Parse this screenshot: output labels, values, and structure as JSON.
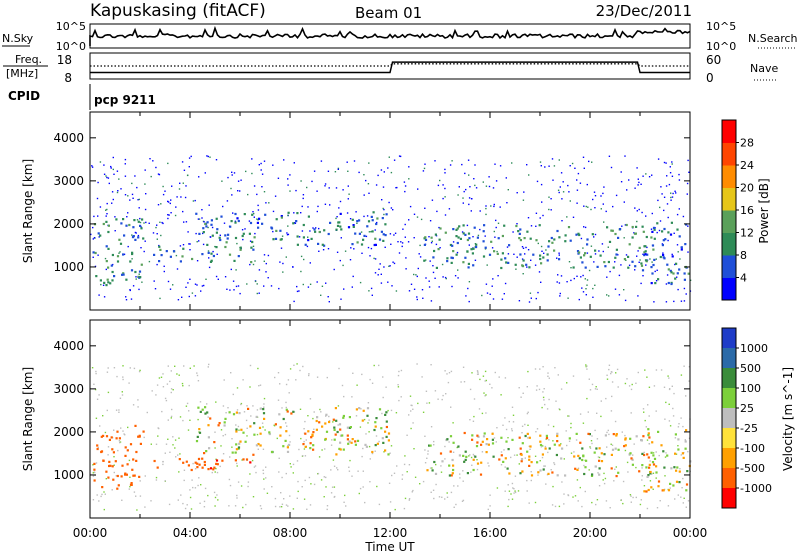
{
  "header": {
    "station": "Kapuskasing (fitACF)",
    "beam": "Beam 01",
    "date": "23/Dec/2011"
  },
  "top_panels": {
    "nsky_label": "N.Sky",
    "nsearch_label": "N.Search",
    "freq_label_line1": "Freq.",
    "freq_label_line2": "[MHz]",
    "nave_label": "Nave",
    "cpid_label": "CPID",
    "cpid_value": "pcp 9211",
    "noise_ticks_left": [
      "10^5",
      "10^0"
    ],
    "noise_ticks_right": [
      "10^5",
      "10^0"
    ],
    "freq_ticks": [
      "18",
      "8"
    ],
    "nave_ticks": [
      "60",
      "0"
    ],
    "freq_series_mhz": [
      {
        "t": 0,
        "v": 10.5
      },
      {
        "t": 12,
        "v": 10.5
      },
      {
        "t": 12.1,
        "v": 14.5
      },
      {
        "t": 21.9,
        "v": 14.5
      },
      {
        "t": 22,
        "v": 10.5
      },
      {
        "t": 24,
        "v": 10.5
      }
    ],
    "nave_series": [
      {
        "t": 0,
        "v": 30
      },
      {
        "t": 12,
        "v": 30
      },
      {
        "t": 12.1,
        "v": 35
      },
      {
        "t": 21.9,
        "v": 35
      },
      {
        "t": 22,
        "v": 30
      },
      {
        "t": 24,
        "v": 30
      }
    ]
  },
  "chart_data": [
    {
      "type": "heatmap",
      "parameter": "Power",
      "ylabel": "Slant Range [km]",
      "xlabel": "Time UT",
      "colorbar_label": "Power [dB]",
      "colorbar_ticks": [
        "4",
        "8",
        "12",
        "16",
        "20",
        "24",
        "28"
      ],
      "colorbar_colors": [
        "#0000ff",
        "#1f4fd8",
        "#2e8b57",
        "#5aa05a",
        "#e6c619",
        "#ff8c00",
        "#ff4500",
        "#ff0000"
      ],
      "ylim": [
        0,
        4600
      ],
      "yticks": [
        "1000",
        "2000",
        "3000",
        "4000"
      ],
      "xlim_hours": [
        0,
        24
      ],
      "xticks": [
        "00:00",
        "04:00",
        "08:00",
        "12:00",
        "16:00",
        "20:00",
        "00:00"
      ],
      "scatter_regions": [
        {
          "t0": 0.0,
          "t1": 2.1,
          "r0": 600,
          "r1": 2200,
          "value": 10
        },
        {
          "t0": 2.5,
          "t1": 6.5,
          "r0": 1100,
          "r1": 1500,
          "value": 9
        },
        {
          "t0": 4.2,
          "t1": 12.0,
          "r0": 1500,
          "r1": 2300,
          "value": 8
        },
        {
          "t0": 13.3,
          "t1": 22.5,
          "r0": 1000,
          "r1": 2000,
          "value": 10
        },
        {
          "t0": 22.0,
          "t1": 24.0,
          "r0": 600,
          "r1": 2100,
          "value": 8
        }
      ]
    },
    {
      "type": "heatmap",
      "parameter": "Velocity",
      "ylabel": "Slant Range [km]",
      "xlabel": "Time UT",
      "colorbar_label": "Velocity [m s^-1]",
      "colorbar_ticks": [
        "1000",
        "500",
        "100",
        "25",
        "-25",
        "-100",
        "-500",
        "-1000"
      ],
      "colorbar_colors": [
        "#1e3cc8",
        "#2b6aa8",
        "#3a8c3a",
        "#7ccf3a",
        "#bebebe",
        "#ffe23a",
        "#ffa000",
        "#ff6000",
        "#ff0000"
      ],
      "ylim": [
        0,
        4600
      ],
      "yticks": [
        "1000",
        "2000",
        "3000",
        "4000"
      ],
      "xlim_hours": [
        0,
        24
      ],
      "xticks": [
        "00:00",
        "04:00",
        "08:00",
        "12:00",
        "16:00",
        "20:00",
        "00:00"
      ],
      "scatter_regions": [
        {
          "t0": 0.0,
          "t1": 2.1,
          "r0": 700,
          "r1": 2200,
          "value": -300
        },
        {
          "t0": 2.5,
          "t1": 6.5,
          "r0": 1100,
          "r1": 1500,
          "value": -400
        },
        {
          "t0": 4.2,
          "t1": 12.0,
          "r0": 1500,
          "r1": 2600,
          "value": 0
        },
        {
          "t0": 13.3,
          "t1": 22.5,
          "r0": 1000,
          "r1": 2000,
          "value": 0
        },
        {
          "t0": 22.0,
          "t1": 24.0,
          "r0": 600,
          "r1": 2100,
          "value": 0
        }
      ]
    }
  ]
}
